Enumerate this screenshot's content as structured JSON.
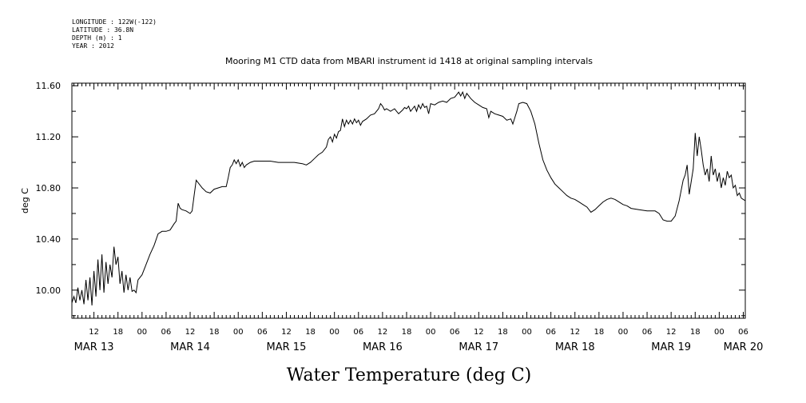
{
  "header": {
    "longitude": "LONGITUDE : 122W(-122)",
    "latitude": "LATITUDE : 36.8N",
    "depth": "DEPTH (m) : 1",
    "year": "YEAR : 2012"
  },
  "chart_data": {
    "type": "line",
    "title": "Mooring M1 CTD data from MBARI instrument id 1418 at original sampling intervals",
    "xlabel": "Water Temperature (deg C)",
    "ylabel": "deg C",
    "ylim": [
      9.78,
      11.62
    ],
    "y_ticks": [
      "10.00",
      "10.40",
      "10.80",
      "11.20",
      "11.60"
    ],
    "x_unit": "hours since MAR 13 00",
    "xlim": [
      6.5,
      174.5
    ],
    "hour_ticks": [
      {
        "h": 12,
        "label": "12"
      },
      {
        "h": 18,
        "label": "18"
      },
      {
        "h": 24,
        "label": "00"
      },
      {
        "h": 30,
        "label": "06"
      },
      {
        "h": 36,
        "label": "12"
      },
      {
        "h": 42,
        "label": "18"
      },
      {
        "h": 48,
        "label": "00"
      },
      {
        "h": 54,
        "label": "06"
      },
      {
        "h": 60,
        "label": "12"
      },
      {
        "h": 66,
        "label": "18"
      },
      {
        "h": 72,
        "label": "00"
      },
      {
        "h": 78,
        "label": "06"
      },
      {
        "h": 84,
        "label": "12"
      },
      {
        "h": 90,
        "label": "18"
      },
      {
        "h": 96,
        "label": "00"
      },
      {
        "h": 102,
        "label": "06"
      },
      {
        "h": 108,
        "label": "12"
      },
      {
        "h": 114,
        "label": "18"
      },
      {
        "h": 120,
        "label": "00"
      },
      {
        "h": 126,
        "label": "06"
      },
      {
        "h": 132,
        "label": "12"
      },
      {
        "h": 138,
        "label": "18"
      },
      {
        "h": 144,
        "label": "00"
      },
      {
        "h": 150,
        "label": "06"
      },
      {
        "h": 156,
        "label": "12"
      },
      {
        "h": 162,
        "label": "18"
      },
      {
        "h": 168,
        "label": "00"
      },
      {
        "h": 174,
        "label": "06"
      }
    ],
    "day_ticks": [
      {
        "h": 12,
        "label": "MAR 13"
      },
      {
        "h": 36,
        "label": "MAR 14"
      },
      {
        "h": 60,
        "label": "MAR 15"
      },
      {
        "h": 84,
        "label": "MAR 16"
      },
      {
        "h": 108,
        "label": "MAR 17"
      },
      {
        "h": 132,
        "label": "MAR 18"
      },
      {
        "h": 156,
        "label": "MAR 19"
      },
      {
        "h": 174,
        "label": "MAR 20"
      }
    ],
    "grid": false,
    "series": [
      {
        "color": "#000000",
        "points": [
          [
            6.5,
            9.9
          ],
          [
            7.0,
            9.95
          ],
          [
            7.5,
            9.9
          ],
          [
            8.0,
            10.02
          ],
          [
            8.5,
            9.92
          ],
          [
            9.0,
            10.0
          ],
          [
            9.5,
            9.89
          ],
          [
            10.0,
            10.08
          ],
          [
            10.5,
            9.92
          ],
          [
            11.0,
            10.1
          ],
          [
            11.5,
            9.88
          ],
          [
            12.0,
            10.15
          ],
          [
            12.5,
            9.95
          ],
          [
            13.0,
            10.24
          ],
          [
            13.5,
            10.0
          ],
          [
            14.0,
            10.28
          ],
          [
            14.5,
            9.98
          ],
          [
            15.0,
            10.22
          ],
          [
            15.5,
            10.05
          ],
          [
            16.0,
            10.2
          ],
          [
            16.5,
            10.1
          ],
          [
            17.0,
            10.34
          ],
          [
            17.5,
            10.2
          ],
          [
            18.0,
            10.26
          ],
          [
            18.5,
            10.05
          ],
          [
            19.0,
            10.15
          ],
          [
            19.5,
            9.98
          ],
          [
            20.0,
            10.12
          ],
          [
            20.5,
            10.0
          ],
          [
            21.0,
            10.1
          ],
          [
            21.5,
            9.99
          ],
          [
            22.0,
            10.0
          ],
          [
            22.5,
            9.98
          ],
          [
            23.0,
            10.08
          ],
          [
            24.0,
            10.12
          ],
          [
            25.0,
            10.2
          ],
          [
            26.0,
            10.28
          ],
          [
            27.0,
            10.35
          ],
          [
            28.0,
            10.44
          ],
          [
            29.0,
            10.46
          ],
          [
            30.0,
            10.46
          ],
          [
            31.0,
            10.47
          ],
          [
            32.0,
            10.52
          ],
          [
            32.5,
            10.54
          ],
          [
            33.0,
            10.68
          ],
          [
            33.5,
            10.64
          ],
          [
            34.0,
            10.63
          ],
          [
            35.0,
            10.62
          ],
          [
            36.0,
            10.6
          ],
          [
            36.5,
            10.62
          ],
          [
            37.0,
            10.74
          ],
          [
            37.5,
            10.86
          ],
          [
            38.0,
            10.84
          ],
          [
            39.0,
            10.8
          ],
          [
            40.0,
            10.77
          ],
          [
            41.0,
            10.76
          ],
          [
            42.0,
            10.79
          ],
          [
            43.0,
            10.8
          ],
          [
            44.0,
            10.81
          ],
          [
            45.0,
            10.81
          ],
          [
            45.5,
            10.88
          ],
          [
            46.0,
            10.96
          ],
          [
            46.5,
            10.98
          ],
          [
            47.0,
            11.02
          ],
          [
            47.5,
            10.99
          ],
          [
            48.0,
            11.02
          ],
          [
            48.5,
            10.97
          ],
          [
            49.0,
            11.0
          ],
          [
            49.5,
            10.96
          ],
          [
            50.0,
            10.98
          ],
          [
            51.0,
            11.0
          ],
          [
            52.0,
            11.01
          ],
          [
            54.0,
            11.01
          ],
          [
            56.0,
            11.01
          ],
          [
            58.0,
            11.0
          ],
          [
            60.0,
            11.0
          ],
          [
            62.0,
            11.0
          ],
          [
            64.0,
            10.99
          ],
          [
            65.0,
            10.98
          ],
          [
            66.0,
            11.0
          ],
          [
            67.0,
            11.03
          ],
          [
            68.0,
            11.06
          ],
          [
            69.0,
            11.08
          ],
          [
            70.0,
            11.12
          ],
          [
            70.5,
            11.18
          ],
          [
            71.0,
            11.2
          ],
          [
            71.5,
            11.16
          ],
          [
            72.0,
            11.22
          ],
          [
            72.5,
            11.19
          ],
          [
            73.0,
            11.24
          ],
          [
            73.5,
            11.25
          ],
          [
            74.0,
            11.34
          ],
          [
            74.5,
            11.28
          ],
          [
            75.0,
            11.33
          ],
          [
            75.5,
            11.3
          ],
          [
            76.0,
            11.33
          ],
          [
            76.5,
            11.3
          ],
          [
            77.0,
            11.34
          ],
          [
            77.5,
            11.31
          ],
          [
            78.0,
            11.33
          ],
          [
            78.5,
            11.29
          ],
          [
            79.0,
            11.32
          ],
          [
            80.0,
            11.34
          ],
          [
            81.0,
            11.37
          ],
          [
            82.0,
            11.38
          ],
          [
            83.0,
            11.42
          ],
          [
            83.5,
            11.46
          ],
          [
            84.0,
            11.44
          ],
          [
            84.5,
            11.41
          ],
          [
            85.0,
            11.42
          ],
          [
            86.0,
            11.4
          ],
          [
            87.0,
            11.42
          ],
          [
            88.0,
            11.38
          ],
          [
            89.0,
            11.41
          ],
          [
            89.5,
            11.43
          ],
          [
            90.0,
            11.42
          ],
          [
            90.5,
            11.44
          ],
          [
            91.0,
            11.4
          ],
          [
            91.5,
            11.42
          ],
          [
            92.0,
            11.44
          ],
          [
            92.5,
            11.4
          ],
          [
            93.0,
            11.45
          ],
          [
            93.5,
            11.42
          ],
          [
            94.0,
            11.46
          ],
          [
            94.5,
            11.43
          ],
          [
            95.0,
            11.44
          ],
          [
            95.5,
            11.38
          ],
          [
            96.0,
            11.46
          ],
          [
            97.0,
            11.45
          ],
          [
            98.0,
            11.47
          ],
          [
            99.0,
            11.48
          ],
          [
            100.0,
            11.47
          ],
          [
            101.0,
            11.5
          ],
          [
            102.0,
            11.51
          ],
          [
            102.5,
            11.53
          ],
          [
            103.0,
            11.55
          ],
          [
            103.5,
            11.52
          ],
          [
            104.0,
            11.55
          ],
          [
            104.5,
            11.5
          ],
          [
            105.0,
            11.54
          ],
          [
            106.0,
            11.5
          ],
          [
            107.0,
            11.47
          ],
          [
            108.0,
            11.45
          ],
          [
            109.0,
            11.43
          ],
          [
            110.0,
            11.42
          ],
          [
            110.5,
            11.35
          ],
          [
            111.0,
            11.4
          ],
          [
            112.0,
            11.38
          ],
          [
            113.0,
            11.37
          ],
          [
            114.0,
            11.36
          ],
          [
            115.0,
            11.33
          ],
          [
            116.0,
            11.34
          ],
          [
            116.5,
            11.3
          ],
          [
            117.0,
            11.35
          ],
          [
            117.5,
            11.4
          ],
          [
            118.0,
            11.46
          ],
          [
            119.0,
            11.47
          ],
          [
            120.0,
            11.46
          ],
          [
            121.0,
            11.4
          ],
          [
            122.0,
            11.3
          ],
          [
            123.0,
            11.15
          ],
          [
            124.0,
            11.02
          ],
          [
            125.0,
            10.94
          ],
          [
            126.0,
            10.88
          ],
          [
            127.0,
            10.83
          ],
          [
            128.0,
            10.8
          ],
          [
            129.0,
            10.77
          ],
          [
            130.0,
            10.74
          ],
          [
            131.0,
            10.72
          ],
          [
            132.0,
            10.71
          ],
          [
            133.0,
            10.69
          ],
          [
            134.0,
            10.67
          ],
          [
            135.0,
            10.65
          ],
          [
            136.0,
            10.61
          ],
          [
            137.0,
            10.63
          ],
          [
            138.0,
            10.66
          ],
          [
            139.0,
            10.69
          ],
          [
            140.0,
            10.71
          ],
          [
            141.0,
            10.72
          ],
          [
            142.0,
            10.71
          ],
          [
            143.0,
            10.69
          ],
          [
            144.0,
            10.67
          ],
          [
            145.0,
            10.66
          ],
          [
            146.0,
            10.64
          ],
          [
            148.0,
            10.63
          ],
          [
            150.0,
            10.62
          ],
          [
            152.0,
            10.62
          ],
          [
            153.0,
            10.6
          ],
          [
            154.0,
            10.55
          ],
          [
            155.0,
            10.54
          ],
          [
            156.0,
            10.54
          ],
          [
            157.0,
            10.58
          ],
          [
            158.0,
            10.7
          ],
          [
            158.5,
            10.78
          ],
          [
            159.0,
            10.86
          ],
          [
            159.5,
            10.9
          ],
          [
            160.0,
            10.98
          ],
          [
            160.5,
            10.75
          ],
          [
            161.0,
            10.85
          ],
          [
            161.5,
            10.95
          ],
          [
            162.0,
            11.23
          ],
          [
            162.5,
            11.05
          ],
          [
            163.0,
            11.2
          ],
          [
            163.5,
            11.1
          ],
          [
            164.0,
            10.98
          ],
          [
            164.5,
            10.9
          ],
          [
            165.0,
            10.95
          ],
          [
            165.5,
            10.85
          ],
          [
            166.0,
            11.05
          ],
          [
            166.5,
            10.9
          ],
          [
            167.0,
            10.95
          ],
          [
            167.5,
            10.85
          ],
          [
            168.0,
            10.92
          ],
          [
            168.5,
            10.8
          ],
          [
            169.0,
            10.88
          ],
          [
            169.5,
            10.82
          ],
          [
            170.0,
            10.93
          ],
          [
            170.5,
            10.88
          ],
          [
            171.0,
            10.9
          ],
          [
            171.5,
            10.8
          ],
          [
            172.0,
            10.82
          ],
          [
            172.5,
            10.74
          ],
          [
            173.0,
            10.76
          ],
          [
            173.5,
            10.72
          ],
          [
            174.0,
            10.71
          ],
          [
            174.5,
            10.7
          ]
        ]
      }
    ]
  }
}
